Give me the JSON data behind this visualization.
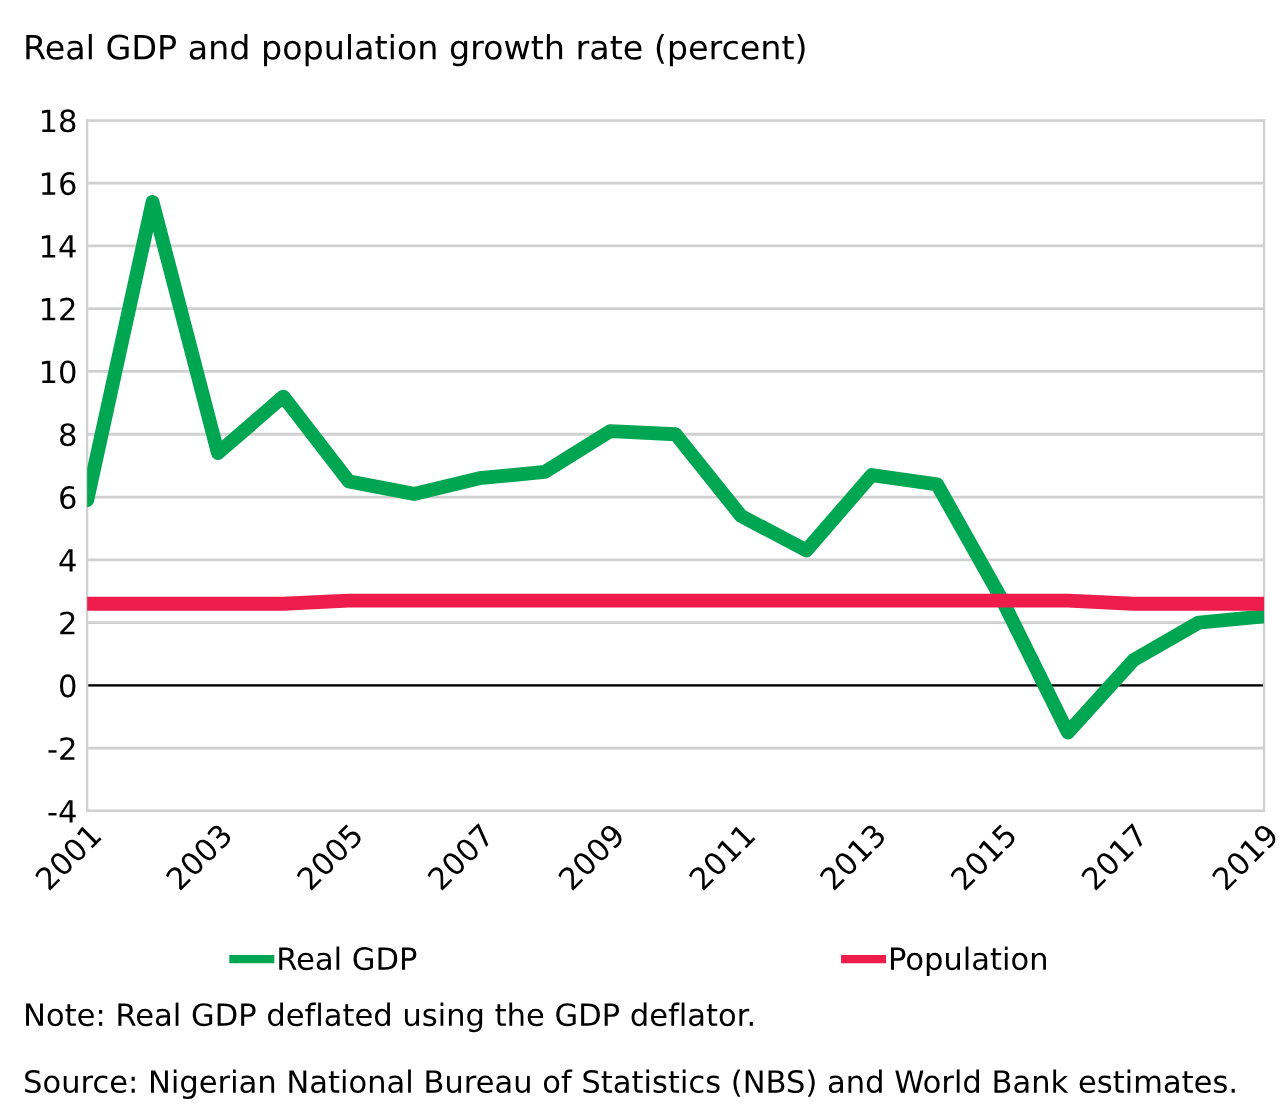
{
  "chart_data": {
    "type": "line",
    "title": "Real GDP and population growth rate (percent)",
    "categories": [
      "2001",
      null,
      "2003",
      null,
      "2005",
      null,
      "2007",
      null,
      "2009",
      null,
      "2011",
      null,
      "2013",
      null,
      "2015",
      null,
      "2017",
      null,
      "2019"
    ],
    "series": [
      {
        "name": "Real GDP",
        "color": "#00a651",
        "values": [
          5.9,
          15.4,
          7.4,
          9.2,
          6.5,
          6.1,
          6.6,
          6.8,
          8.1,
          8.0,
          5.4,
          4.3,
          6.7,
          6.4,
          2.7,
          -1.5,
          0.8,
          2.0,
          2.2
        ]
      },
      {
        "name": "Population",
        "color": "#ed1c4a",
        "values": [
          2.6,
          2.6,
          2.6,
          2.6,
          2.7,
          2.7,
          2.7,
          2.7,
          2.7,
          2.7,
          2.7,
          2.7,
          2.7,
          2.7,
          2.7,
          2.7,
          2.6,
          2.6,
          2.6
        ]
      }
    ],
    "ylim": [
      -4,
      18
    ],
    "yticks": [
      -4,
      -2,
      0,
      2,
      4,
      6,
      8,
      10,
      12,
      14,
      16,
      18
    ],
    "grid": "y",
    "legend": "bottom",
    "marker": "none",
    "line_style": "solid",
    "ref_lines": [
      {
        "axis": "y",
        "value": 0,
        "color": "#000000"
      }
    ],
    "annotations": [
      "Note: Real GDP deflated using the GDP deflator.",
      "Source: Nigerian National Bureau of Statistics (NBS) and World Bank estimates."
    ]
  }
}
